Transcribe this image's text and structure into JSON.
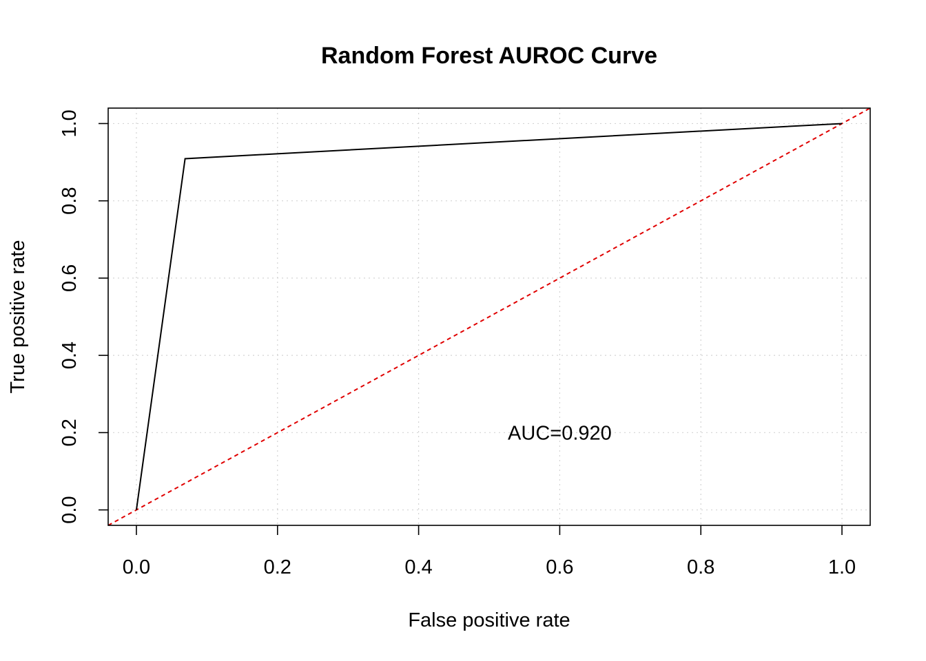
{
  "chart_data": {
    "type": "line",
    "title": "Random Forest AUROC Curve",
    "xlabel": "False positive rate",
    "ylabel": "True positive rate",
    "xlim": [
      -0.04,
      1.04
    ],
    "ylim": [
      -0.04,
      1.04
    ],
    "xticks": [
      0.0,
      0.2,
      0.4,
      0.6,
      0.8,
      1.0
    ],
    "yticks": [
      0.0,
      0.2,
      0.4,
      0.6,
      0.8,
      1.0
    ],
    "xtick_labels": [
      "0.0",
      "0.2",
      "0.4",
      "0.6",
      "0.8",
      "1.0"
    ],
    "ytick_labels": [
      "0.0",
      "0.2",
      "0.4",
      "0.6",
      "0.8",
      "1.0"
    ],
    "grid": true,
    "series": [
      {
        "x": [
          0.0,
          0.069,
          1.0
        ],
        "y": [
          0.0,
          0.909,
          1.0
        ],
        "color": "#000000"
      }
    ],
    "reference_line": {
      "x": [
        -0.04,
        1.04
      ],
      "y": [
        -0.04,
        1.04
      ],
      "color": "#e00000",
      "style": "dashed"
    },
    "annotations": [
      {
        "text": "AUC=0.920",
        "x": 0.6,
        "y": 0.2
      }
    ]
  }
}
